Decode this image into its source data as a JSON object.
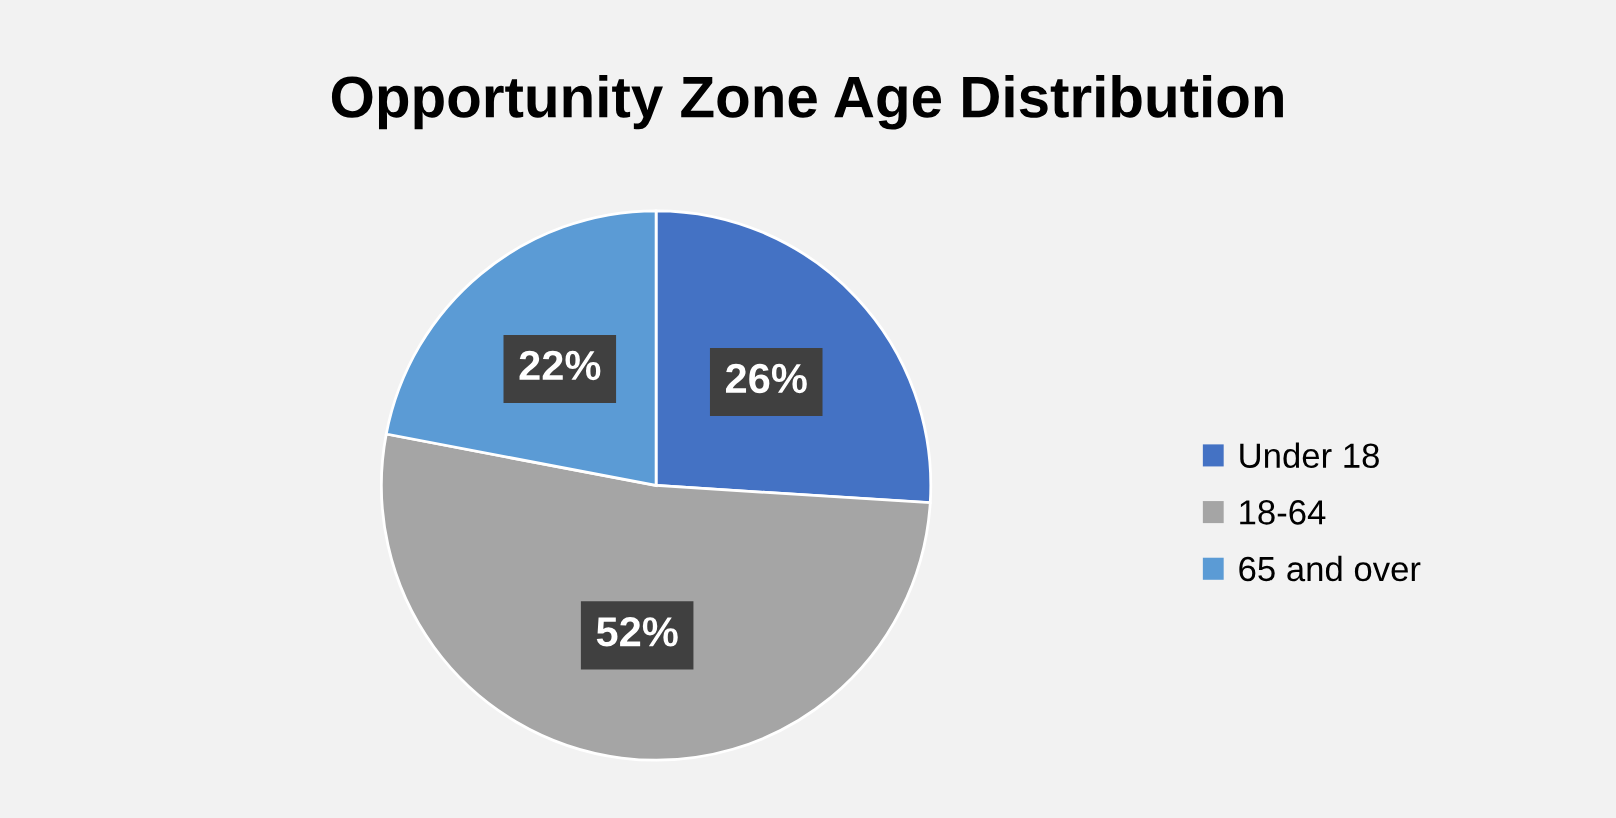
{
  "chart_data": {
    "type": "pie",
    "title": "Opportunity Zone Age Distribution",
    "categories": [
      "Under 18",
      "18-64",
      "65 and over"
    ],
    "values": [
      26,
      52,
      22
    ],
    "colors": [
      "#4472c4",
      "#a5a5a5",
      "#5b9bd5"
    ],
    "value_labels": [
      "26%",
      "52%",
      "22%"
    ],
    "legend": "right"
  }
}
